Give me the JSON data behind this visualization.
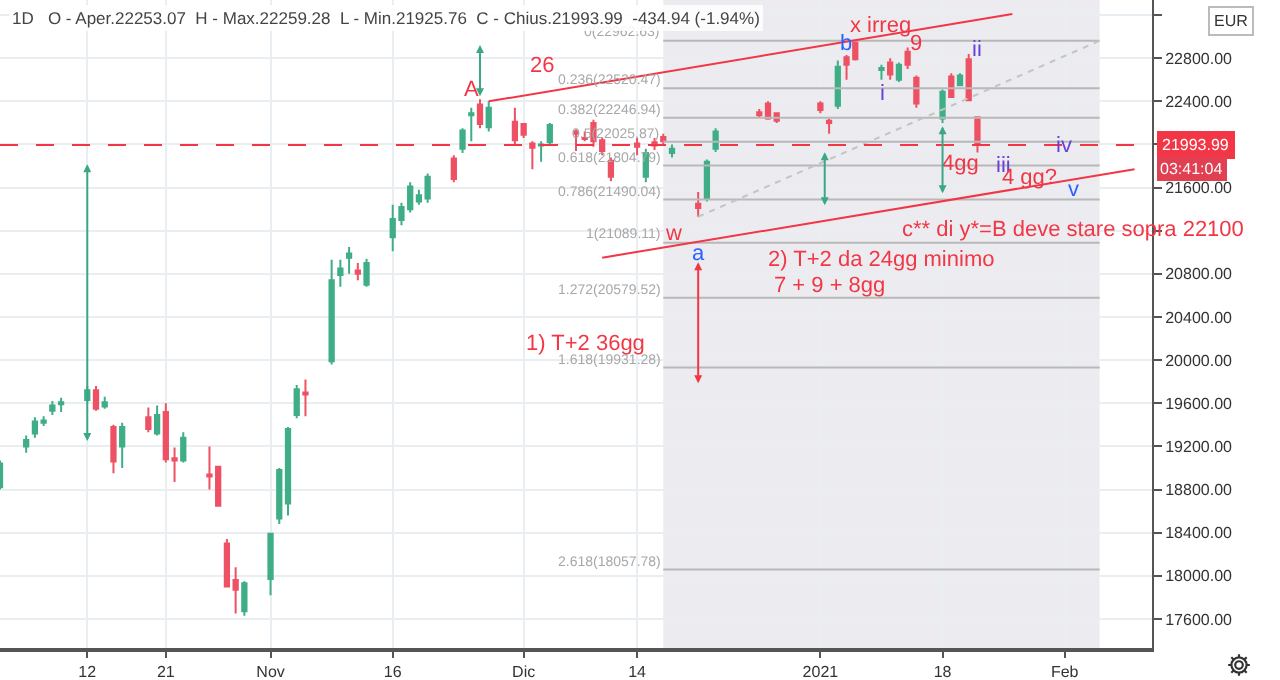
{
  "chart_data": {
    "type": "candlestick",
    "subtitle": "1D   O - Aper.22253.07  H - Max.22259.28  L - Min.21925.76  C - Chius.21993.99  -434.94 (-1.94%)",
    "series": [
      {
        "color": "#3fae86",
        "x": [
          "2020-10-02",
          "2020-10-05",
          "2020-10-06",
          "2020-10-07",
          "2020-10-08",
          "2020-10-09",
          "2020-10-12",
          "2020-10-14",
          "2020-10-16",
          "2020-10-20",
          "2020-10-23",
          "2020-10-30",
          "2020-11-02",
          "2020-11-03",
          "2020-11-04",
          "2020-11-05",
          "2020-11-09",
          "2020-11-10",
          "2020-11-11",
          "2020-11-13",
          "2020-11-16",
          "2020-11-17",
          "2020-11-18",
          "2020-11-19",
          "2020-11-20",
          "2020-11-24",
          "2020-11-25",
          "2020-11-27",
          "2020-12-03",
          "2020-12-04",
          "2020-12-15",
          "2020-12-18",
          "2020-12-22",
          "2020-12-23",
          "2021-01-06",
          "2021-01-11",
          "2021-01-13",
          "2021-01-18",
          "2021-01-20"
        ],
        "ohlc": [
          [
            18820,
            19070,
            18800,
            19040
          ],
          [
            19200,
            19300,
            19140,
            19260
          ],
          [
            19320,
            19470,
            19280,
            19430
          ],
          [
            19420,
            19480,
            19390,
            19440
          ],
          [
            19530,
            19620,
            19490,
            19580
          ],
          [
            19590,
            19650,
            19520,
            19610
          ],
          [
            19630,
            19760,
            19610,
            19720
          ],
          [
            19570,
            19660,
            19550,
            19610
          ],
          [
            19200,
            19420,
            19000,
            19380
          ],
          [
            19320,
            19580,
            19300,
            19490
          ],
          [
            19070,
            19330,
            19050,
            19280
          ],
          [
            17670,
            17950,
            17630,
            17930
          ],
          [
            17970,
            18400,
            17820,
            18390
          ],
          [
            18530,
            19000,
            18480,
            18980
          ],
          [
            18670,
            19380,
            18560,
            19360
          ],
          [
            19490,
            19770,
            19460,
            19730
          ],
          [
            19990,
            20930,
            19960,
            20740
          ],
          [
            20790,
            20930,
            20680,
            20850
          ],
          [
            20950,
            21050,
            20800,
            20990
          ],
          [
            20700,
            20940,
            20680,
            20900
          ],
          [
            21140,
            21440,
            21010,
            21310
          ],
          [
            21300,
            21460,
            21250,
            21420
          ],
          [
            21400,
            21650,
            21370,
            21610
          ],
          [
            21470,
            21580,
            21440,
            21530
          ],
          [
            21500,
            21730,
            21460,
            21700
          ],
          [
            21960,
            22150,
            21920,
            22130
          ],
          [
            22270,
            22340,
            22030,
            22290
          ],
          [
            22160,
            22400,
            22120,
            22340
          ],
          [
            21990,
            22030,
            21840,
            22000
          ],
          [
            22020,
            22200,
            22000,
            22180
          ],
          [
            21700,
            21960,
            21650,
            21920
          ],
          [
            21920,
            22000,
            21880,
            21960
          ],
          [
            21500,
            21860,
            21470,
            21840
          ],
          [
            21960,
            22150,
            21930,
            22120
          ],
          [
            22360,
            22780,
            22330,
            22720
          ],
          [
            22690,
            22740,
            22600,
            22710
          ],
          [
            22600,
            22760,
            22580,
            22740
          ],
          [
            22240,
            22510,
            22200,
            22490
          ],
          [
            22550,
            22660,
            22540,
            22640
          ]
        ]
      },
      {
        "color": "#ee5164",
        "x": [
          "2020-10-13",
          "2020-10-15",
          "2020-10-19",
          "2020-10-21",
          "2020-10-22",
          "2020-10-26",
          "2020-10-27",
          "2020-10-28",
          "2020-10-29",
          "2020-11-06",
          "2020-11-12",
          "2020-11-23",
          "2020-11-26",
          "2020-11-30",
          "2020-12-01",
          "2020-12-02",
          "2020-12-07",
          "2020-12-08",
          "2020-12-09",
          "2020-12-10",
          "2020-12-11",
          "2020-12-14",
          "2020-12-16",
          "2020-12-17",
          "2020-12-21",
          "2020-12-28",
          "2020-12-29",
          "2020-12-30",
          "2021-01-04",
          "2021-01-05",
          "2021-01-07",
          "2021-01-08",
          "2021-01-12",
          "2021-01-14",
          "2021-01-15",
          "2021-01-19",
          "2021-01-21",
          "2021-01-22"
        ],
        "ohlc": [
          [
            19720,
            19760,
            19530,
            19550
          ],
          [
            19380,
            19400,
            18950,
            19060
          ],
          [
            19470,
            19560,
            19330,
            19360
          ],
          [
            19520,
            19600,
            19050,
            19080
          ],
          [
            19090,
            19190,
            18870,
            19070
          ],
          [
            18940,
            19200,
            18800,
            18920
          ],
          [
            19010,
            19020,
            18640,
            18650
          ],
          [
            18300,
            18340,
            17890,
            17900
          ],
          [
            17960,
            18080,
            17650,
            17870
          ],
          [
            19700,
            19820,
            19480,
            19680
          ],
          [
            20830,
            20900,
            20740,
            20800
          ],
          [
            21870,
            21900,
            21650,
            21680
          ],
          [
            22370,
            22420,
            22150,
            22190
          ],
          [
            22210,
            22340,
            22000,
            22040
          ],
          [
            22190,
            22200,
            22060,
            22090
          ],
          [
            22010,
            22030,
            21770,
            21970
          ],
          [
            22120,
            22140,
            21940,
            22100
          ],
          [
            22060,
            22120,
            22030,
            22050
          ],
          [
            22200,
            22230,
            21980,
            22030
          ],
          [
            22040,
            22060,
            21900,
            21940
          ],
          [
            21850,
            21880,
            21660,
            21700
          ],
          [
            22010,
            22060,
            21900,
            21980
          ],
          [
            22020,
            22060,
            21950,
            21990
          ],
          [
            22070,
            22100,
            21990,
            22030
          ],
          [
            21450,
            21560,
            21330,
            21410
          ],
          [
            22300,
            22330,
            22250,
            22270
          ],
          [
            22380,
            22400,
            22230,
            22240
          ],
          [
            22290,
            22300,
            22200,
            22220
          ],
          [
            22380,
            22400,
            22290,
            22320
          ],
          [
            22220,
            22240,
            22100,
            22200
          ],
          [
            22810,
            22830,
            22600,
            22740
          ],
          [
            22950,
            22960,
            22780,
            22790
          ],
          [
            22760,
            22800,
            22600,
            22650
          ],
          [
            22860,
            22900,
            22700,
            22740
          ],
          [
            22620,
            22640,
            22340,
            22380
          ],
          [
            22630,
            22660,
            22430,
            22440
          ],
          [
            22790,
            22840,
            22400,
            22410
          ],
          [
            22253.07,
            22259.28,
            21925.76,
            21993.99
          ]
        ]
      },
      {
        "type": "line",
        "name": "0(22962.63)",
        "color": "#b8b8b8",
        "line_style": "solid",
        "x": [
          "2020-12-17",
          "2021-02-05"
        ],
        "values": [
          22962.63,
          22962.63
        ]
      },
      {
        "type": "line",
        "name": "0.236(22520.47)",
        "color": "#b8b8b8",
        "line_style": "solid",
        "x": [
          "2020-12-17",
          "2021-02-05"
        ],
        "values": [
          22520.47,
          22520.47
        ]
      },
      {
        "type": "line",
        "name": "0.382(22246.94)",
        "color": "#b8b8b8",
        "line_style": "solid",
        "x": [
          "2020-12-17",
          "2021-02-05"
        ],
        "values": [
          22246.94,
          22246.94
        ]
      },
      {
        "type": "line",
        "name": "0.5(22025.87)",
        "color": "#b8b8b8",
        "line_style": "solid",
        "x": [
          "2020-12-17",
          "2021-02-05"
        ],
        "values": [
          22025.87,
          22025.87
        ]
      },
      {
        "type": "line",
        "name": "0.618(21804.79)",
        "color": "#b8b8b8",
        "line_style": "solid",
        "x": [
          "2020-12-17",
          "2021-02-05"
        ],
        "values": [
          21804.79,
          21804.79
        ]
      },
      {
        "type": "line",
        "name": "0.786(21490.04)",
        "color": "#b8b8b8",
        "line_style": "solid",
        "x": [
          "2020-12-17",
          "2021-02-05"
        ],
        "values": [
          21490.04,
          21490.04
        ]
      },
      {
        "type": "line",
        "name": "1(21089.11)",
        "color": "#b8b8b8",
        "line_style": "solid",
        "x": [
          "2020-12-17",
          "2021-02-05"
        ],
        "values": [
          21089.11,
          21089.11
        ]
      },
      {
        "type": "line",
        "name": "1.272(20579.52)",
        "color": "#b8b8b8",
        "line_style": "solid",
        "x": [
          "2020-12-17",
          "2021-02-05"
        ],
        "values": [
          20579.52,
          20579.52
        ]
      },
      {
        "type": "line",
        "name": "1.618(19931.28)",
        "color": "#b8b8b8",
        "line_style": "solid",
        "x": [
          "2020-12-17",
          "2021-02-05"
        ],
        "values": [
          19931.28,
          19931.28
        ]
      },
      {
        "type": "line",
        "name": "2.618(18057.78)",
        "color": "#b8b8b8",
        "line_style": "solid",
        "x": [
          "2020-12-17",
          "2021-02-05"
        ],
        "values": [
          18057.78,
          18057.78
        ]
      },
      {
        "type": "line",
        "color": "#c4c4c4",
        "line_style": "dotted",
        "x": [
          "2020-12-21",
          "2021-02-05"
        ],
        "values": [
          21330,
          22962.63
        ]
      },
      {
        "type": "line",
        "color": "#f23645",
        "line_style": "solid",
        "x": [
          "2020-11-27",
          "2021-01-26"
        ],
        "values": [
          22400,
          23210
        ]
      },
      {
        "type": "line",
        "color": "#f23645",
        "line_style": "solid",
        "x": [
          "2020-12-10",
          "2021-02-09"
        ],
        "values": [
          20950,
          21770
        ]
      }
    ],
    "annotations": [
      "A",
      "26",
      {
        "text": "x irreg",
        "x": "2021-01-11",
        "y": 23100
      },
      {
        "text": "b",
        "x": "2021-01-07",
        "y": 22930
      },
      {
        "text": "9",
        "x": "2021-01-15",
        "y": 22930
      },
      {
        "text": "i",
        "x": "2021-01-11",
        "y": 22470
      },
      {
        "text": "ii",
        "x": "2021-01-22",
        "y": 22870
      },
      {
        "text": "iii",
        "x": "2021-01-25",
        "y": 21800
      },
      {
        "text": "iv",
        "x": "2021-02-01",
        "y": 21980
      },
      "v",
      {
        "text": "w",
        "x": "2020-12-18",
        "y": 21170
      },
      "a",
      {
        "text": "4gg",
        "x": "2021-01-20",
        "y": 21820
      },
      "4 gg?",
      "c** di y*=B deve stare sopra 22100",
      "2) T+2 da 24gg minimo",
      "7 + 9 + 8gg",
      "1) T+2 36gg",
      "EUR",
      "03:41:04"
    ],
    "bands": [
      {
        "axis": "x",
        "from": "2020-12-17",
        "to": "2021-02-05",
        "color": "#ececf0"
      }
    ],
    "ref_lines": [
      {
        "axis": "y",
        "value": 21993.99,
        "label": "21993.99",
        "color": "#f23645",
        "line_style": "dashed"
      }
    ],
    "xlim": [
      "2020-10-02",
      "2021-02-11"
    ],
    "xticks": [
      {
        "value": "2020-10-12",
        "label": "12"
      },
      {
        "value": "2020-10-21",
        "label": "21"
      },
      {
        "value": "2020-11-02",
        "label": "Nov"
      },
      {
        "value": "2020-11-16",
        "label": "16"
      },
      {
        "value": "2020-12-01",
        "label": "Dic"
      },
      {
        "value": "2020-12-14",
        "label": "14"
      },
      {
        "value": "2021-01-04",
        "label": "2021"
      },
      {
        "value": "2021-01-18",
        "label": "18"
      },
      {
        "value": "2021-02-01",
        "label": "Feb"
      }
    ],
    "ylim": [
      17330,
      23340
    ],
    "yticks": [
      {
        "value": 17600,
        "label": "17600.00"
      },
      {
        "value": 18000,
        "label": "18000.00"
      },
      {
        "value": 18400,
        "label": "18400.00"
      },
      {
        "value": 18800,
        "label": "18800.00"
      },
      {
        "value": 19200,
        "label": "19200.00"
      },
      {
        "value": 19600,
        "label": "19600.00"
      },
      {
        "value": 20000,
        "label": "20000.00"
      },
      {
        "value": 20400,
        "label": "20400.00"
      },
      {
        "value": 20800,
        "label": "20800.00"
      },
      {
        "value": 21200,
        "label": null
      },
      {
        "value": 21600,
        "label": "21600.00"
      },
      {
        "value": 22000,
        "label": null
      },
      {
        "value": 22400,
        "label": "22400.00"
      },
      {
        "value": 22800,
        "label": "22800.00"
      },
      {
        "value": 23200,
        "label": null
      }
    ],
    "grid": true
  }
}
